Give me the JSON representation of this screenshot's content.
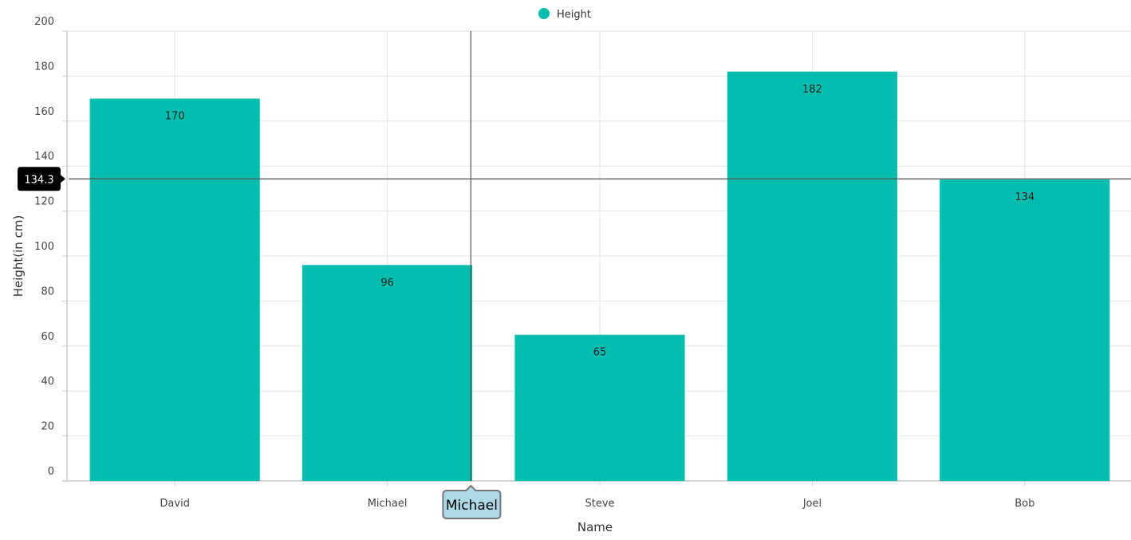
{
  "chart_data": {
    "type": "bar",
    "categories": [
      "David",
      "Michael",
      "Steve",
      "Joel",
      "Bob"
    ],
    "series": [
      {
        "name": "Height",
        "values": [
          170,
          96,
          65,
          182,
          134
        ],
        "color": "#00bdae"
      }
    ],
    "title": "",
    "xlabel": "Name",
    "ylabel": "Height(in cm)",
    "ylim": [
      0,
      200
    ],
    "y_ticks": [
      0,
      20,
      40,
      60,
      80,
      100,
      120,
      140,
      160,
      180,
      200
    ],
    "grid": true,
    "legend_position": "top-center",
    "data_labels": true
  },
  "crosshair": {
    "category": "Michael",
    "y_value_label": "134.3",
    "y_value": 134.3,
    "category_position": 0.685,
    "x_tooltip_color": "#add8e6",
    "y_tooltip_color": "#000000"
  }
}
